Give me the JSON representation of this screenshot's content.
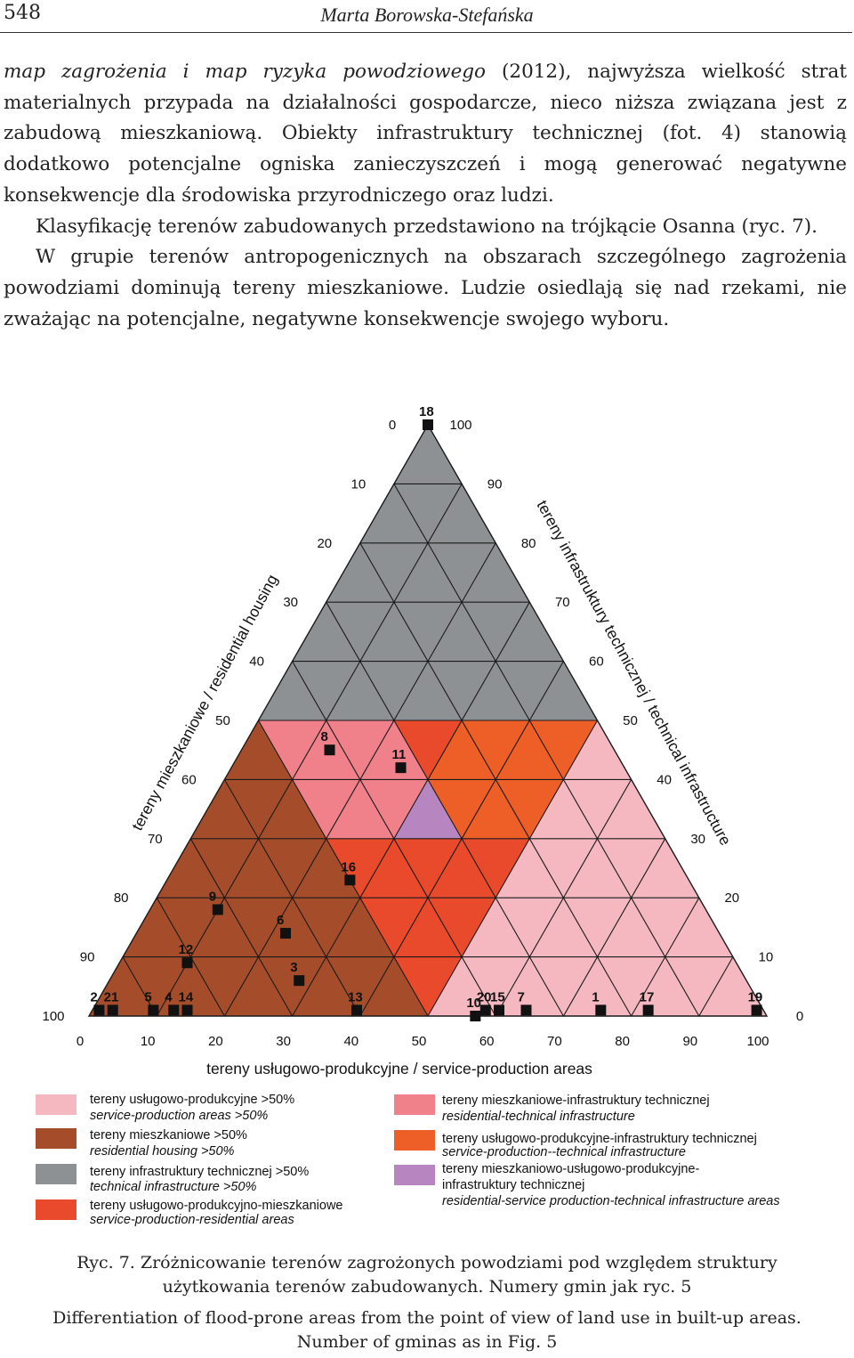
{
  "header": {
    "page_number": "548",
    "author": "Marta Borowska-Stefańska"
  },
  "body": {
    "p1_italic": "map zagrożenia i map ryzyka powodziowego",
    "p1_rest": " (2012), najwyższa wielkość strat materialnych przypada na działalności gospodarcze, nieco niższa związana jest z zabudową mieszkaniową. Obiekty infrastruktury technicznej (fot. 4) stanowią dodatkowo potencjalne ogniska zanieczyszczeń i mogą generować negatywne konsekwencje dla środowiska przyrodniczego oraz ludzi.",
    "p2": "Klasyfikację terenów zabudowanych przedstawiono na trójkącie Osanna (ryc. 7).",
    "p3": "W grupie terenów antropogenicznych na obszarach szczególnego zagrożenia powodziami dominują tereny mieszkaniowe. Ludzie osiedlają się nad rzekami, nie zważając na potencjalne, negatywne konsekwencje swojego wyboru."
  },
  "chart_data": {
    "type": "scatter",
    "subtype": "ternary (Osann triangle)",
    "axes": {
      "bottom": {
        "label": "tereny usługowo-produkcyjne / service-production areas",
        "ticks": [
          "0",
          "10",
          "20",
          "30",
          "40",
          "50",
          "60",
          "70",
          "80",
          "90",
          "100"
        ]
      },
      "left": {
        "label": "tereny mieszkaniowe / residential housing",
        "ticks": [
          "100",
          "90",
          "80",
          "70",
          "60",
          "50",
          "40",
          "30",
          "20",
          "10",
          "0"
        ]
      },
      "right": {
        "label": "tereny infrastruktury technicznej / technical infrastructure",
        "ticks": [
          "0",
          "10",
          "20",
          "30",
          "40",
          "50",
          "60",
          "70",
          "80",
          "90",
          "100"
        ]
      }
    },
    "points": [
      {
        "label": "18",
        "service": 0,
        "residential": 0,
        "technical": 100
      },
      {
        "label": "8",
        "service": 13,
        "residential": 42,
        "technical": 45
      },
      {
        "label": "11",
        "service": 25,
        "residential": 33,
        "technical": 42
      },
      {
        "label": "16",
        "service": 27,
        "residential": 50,
        "technical": 23
      },
      {
        "label": "9",
        "service": 10,
        "residential": 72,
        "technical": 18
      },
      {
        "label": "6",
        "service": 22,
        "residential": 64,
        "technical": 14
      },
      {
        "label": "12",
        "service": 10,
        "residential": 81,
        "technical": 9
      },
      {
        "label": "3",
        "service": 28,
        "residential": 66,
        "technical": 6
      },
      {
        "label": "2",
        "service": 1,
        "residential": 98,
        "technical": 1
      },
      {
        "label": "21",
        "service": 3,
        "residential": 96,
        "technical": 1
      },
      {
        "label": "5",
        "service": 9,
        "residential": 90,
        "technical": 1
      },
      {
        "label": "4",
        "service": 12,
        "residential": 87,
        "technical": 1
      },
      {
        "label": "14",
        "service": 14,
        "residential": 85,
        "technical": 1
      },
      {
        "label": "13",
        "service": 39,
        "residential": 60,
        "technical": 1
      },
      {
        "label": "20",
        "service": 58,
        "residential": 41,
        "technical": 1
      },
      {
        "label": "10",
        "service": 57,
        "residential": 43,
        "technical": 0
      },
      {
        "label": "15",
        "service": 60,
        "residential": 39,
        "technical": 1
      },
      {
        "label": "7",
        "service": 64,
        "residential": 35,
        "technical": 1
      },
      {
        "label": "1",
        "service": 75,
        "residential": 24,
        "technical": 1
      },
      {
        "label": "17",
        "service": 82,
        "residential": 17,
        "technical": 1
      },
      {
        "label": "19",
        "service": 98,
        "residential": 1,
        "technical": 1
      }
    ],
    "classes": [
      {
        "key": "service",
        "pl": "tereny usługowo-produkcyjne >50%",
        "en": "service-production areas >50%",
        "color": "#f5b8c0"
      },
      {
        "key": "residential",
        "pl": "tereny mieszkaniowe >50%",
        "en": "residential housing >50%",
        "color": "#a54d2a"
      },
      {
        "key": "technical",
        "pl": "tereny infrastruktury technicznej >50%",
        "en": "technical infrastructure >50%",
        "color": "#8e9194"
      },
      {
        "key": "serv_res",
        "pl": "tereny usługowo-produkcyjno-mieszkaniowe",
        "en": "service-production-residential areas",
        "color": "#ea4a2c"
      },
      {
        "key": "res_tech",
        "pl": "tereny mieszkaniowe-infrastruktury technicznej",
        "en": "residential-technical infrastructure",
        "color": "#f0808a"
      },
      {
        "key": "serv_tech",
        "pl": "tereny usługowo-produkcyjne-infrastruktury technicznej",
        "en": "service-production--technical infrastructure",
        "color": "#ee5f28"
      },
      {
        "key": "mixed",
        "pl": "tereny mieszkaniowo-usługowo-produkcyjne-infrastruktury technicznej",
        "pl_line1": "tereny mieszkaniowo-usługowo-produkcyjne-",
        "pl_line2": "infrastruktury technicznej",
        "en": "residential-service production-technical infrastructure areas",
        "color": "#b786c0"
      }
    ]
  },
  "caption": {
    "pl_line1": "Ryc. 7. Zróżnicowanie terenów zagrożonych powodziami pod względem struktury",
    "pl_line2": "użytkowania terenów zabudowanych. Numery gmin jak ryc. 5",
    "en_line1": "Differentiation of flood-prone areas from the point of view of land use in built-up areas.",
    "en_line2": "Number of gminas as in Fig. 5"
  }
}
